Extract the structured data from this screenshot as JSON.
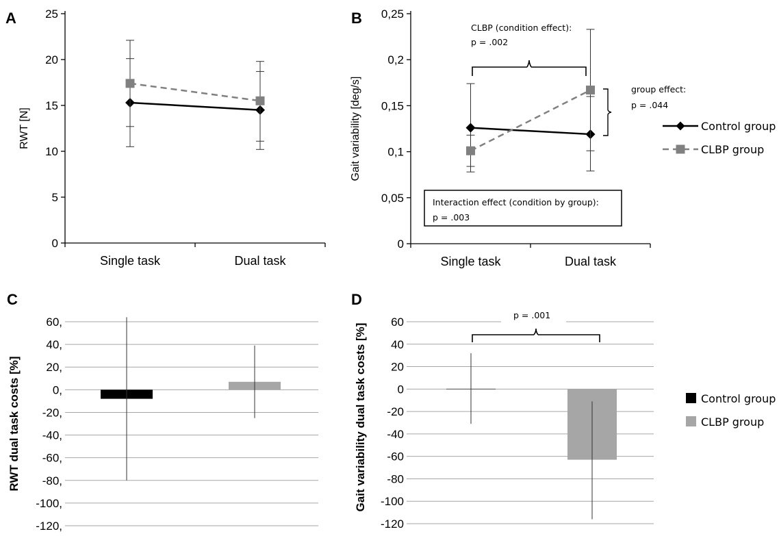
{
  "chart_data": [
    {
      "panel": "A",
      "type": "line",
      "ylabel": "RWT [N]",
      "categories": [
        "Single task",
        "Dual task"
      ],
      "ylim": [
        0,
        25
      ],
      "yticks": [
        "0",
        "5",
        "10",
        "15",
        "20",
        "25"
      ],
      "series": [
        {
          "name": "Control group",
          "values": [
            15.3,
            14.5
          ],
          "err_low": [
            10.5,
            10.2
          ],
          "err_high": [
            20.1,
            18.7
          ],
          "color": "#000000",
          "marker": "diamond",
          "dash": false
        },
        {
          "name": "CLBP group",
          "values": [
            17.4,
            15.5
          ],
          "err_low": [
            12.7,
            11.1
          ],
          "err_high": [
            22.1,
            19.8
          ],
          "color": "#808080",
          "marker": "square",
          "dash": true
        }
      ]
    },
    {
      "panel": "B",
      "type": "line",
      "ylabel": "Gait variability [deg/s]",
      "categories": [
        "Single task",
        "Dual task"
      ],
      "ylim": [
        0,
        0.25
      ],
      "yticks": [
        "0",
        "0,05",
        "0,1",
        "0,15",
        "0,2",
        "0,25"
      ],
      "series": [
        {
          "name": "Control group",
          "values": [
            0.126,
            0.119
          ],
          "err_low": [
            0.078,
            0.079
          ],
          "err_high": [
            0.174,
            0.16
          ],
          "color": "#000000",
          "marker": "diamond",
          "dash": false
        },
        {
          "name": "CLBP group",
          "values": [
            0.101,
            0.167
          ],
          "err_low": [
            0.084,
            0.101
          ],
          "err_high": [
            0.118,
            0.233
          ],
          "color": "#808080",
          "marker": "square",
          "dash": true
        }
      ],
      "annotations": {
        "condition_line1": "CLBP (condition effect):",
        "condition_line2": "p = .002",
        "group_line1": "group effect:",
        "group_line2": "p = .044",
        "interaction_line1": "Interaction effect (condition by group):",
        "interaction_line2": "p = .003"
      }
    },
    {
      "panel": "C",
      "type": "bar",
      "ylabel": "RWT dual task costs [%]",
      "ylim": [
        -120,
        60
      ],
      "yticks": [
        "-120,",
        "-100,",
        "-80,",
        "-60,",
        "-40,",
        "-20,",
        "0,",
        "20,",
        "40,",
        "60,"
      ],
      "series": [
        {
          "name": "Control group",
          "value": -8,
          "err_low": -80,
          "err_high": 64,
          "color": "#000000"
        },
        {
          "name": "CLBP group",
          "value": 7,
          "err_low": -25,
          "err_high": 39,
          "color": "#a6a6a6"
        }
      ]
    },
    {
      "panel": "D",
      "type": "bar",
      "ylabel": "Gait variability dual task costs [%]",
      "ylim": [
        -120,
        60
      ],
      "yticks": [
        "-120",
        "-100",
        "-80",
        "-60",
        "-40",
        "-20",
        "0",
        "20",
        "40",
        "60"
      ],
      "series": [
        {
          "name": "Control group",
          "value": 0,
          "err_low": -31,
          "err_high": 32,
          "color": "#000000"
        },
        {
          "name": "CLBP group",
          "value": -63,
          "err_low": -116,
          "err_high": -11,
          "color": "#a6a6a6"
        }
      ],
      "annotations": {
        "p_value": "p = .001"
      }
    }
  ],
  "legend_top": {
    "control": "Control group",
    "clbp": "CLBP group"
  },
  "legend_bottom": {
    "control": "Control group",
    "clbp": "CLBP group"
  }
}
